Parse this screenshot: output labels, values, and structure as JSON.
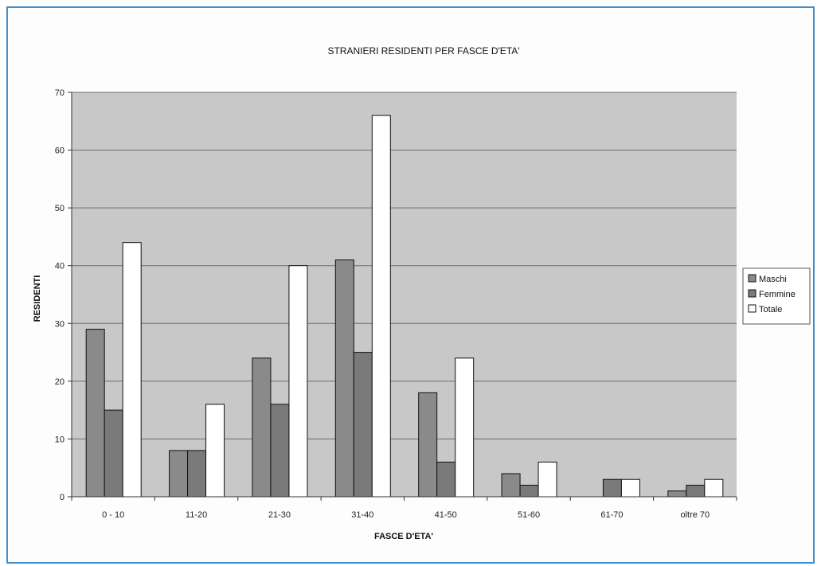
{
  "chart_data": {
    "type": "bar",
    "title": "STRANIERI RESIDENTI PER FASCE D'ETA'",
    "xlabel": "FASCE D'ETA'",
    "ylabel": "RESIDENTI",
    "ylim": [
      0,
      70
    ],
    "yticks": [
      "0",
      "10",
      "20",
      "30",
      "40",
      "50",
      "60",
      "70"
    ],
    "categories": [
      "0 - 10",
      "11-20",
      "21-30",
      "31-40",
      "41-50",
      "51-60",
      "61-70",
      "oltre 70"
    ],
    "series": [
      {
        "name": "Maschi",
        "values": [
          29,
          8,
          24,
          41,
          18,
          4,
          0,
          1
        ],
        "color": "#8a8a8a"
      },
      {
        "name": "Femmine",
        "values": [
          15,
          8,
          16,
          25,
          6,
          2,
          3,
          2
        ],
        "color": "#7a7a7a"
      },
      {
        "name": "Totale",
        "values": [
          44,
          16,
          40,
          66,
          24,
          6,
          3,
          3
        ],
        "color": "#ffffff"
      }
    ],
    "grid": true,
    "legend_position": "right",
    "plot_background": "#c8c8c8"
  }
}
